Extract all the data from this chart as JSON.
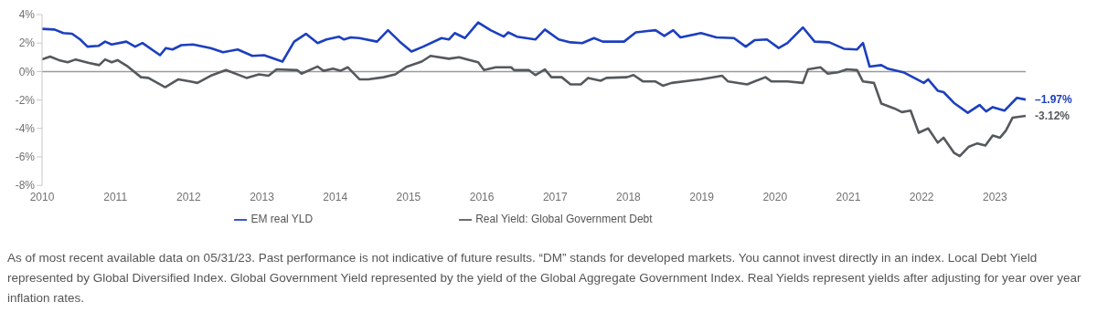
{
  "chart_data": {
    "type": "line",
    "xlim": [
      2010,
      2023.42
    ],
    "xticks": [
      2010,
      2011,
      2012,
      2013,
      2014,
      2015,
      2016,
      2017,
      2018,
      2019,
      2020,
      2021,
      2022,
      2023
    ],
    "ylim": [
      -8,
      4
    ],
    "yticks": [
      {
        "value": -8,
        "label": "-8%"
      },
      {
        "value": -6,
        "label": "-6%"
      },
      {
        "value": -4,
        "label": "-4%"
      },
      {
        "value": -2,
        "label": "-2%"
      },
      {
        "value": 0,
        "label": "0%"
      },
      {
        "value": 2,
        "label": "2%"
      },
      {
        "value": 4,
        "label": "4%"
      }
    ],
    "grid": false,
    "legend": "bottom",
    "marker": "none",
    "line_style": "solid",
    "ref_lines": [
      {
        "axis": "y",
        "value": 0,
        "color": "#9a9a9a"
      }
    ],
    "series": [
      {
        "name": "EM real YLD",
        "color": "#1c3fbf",
        "x": [
          2010.0,
          2010.17,
          2010.29,
          2010.41,
          2010.52,
          2010.62,
          2010.77,
          2010.86,
          2010.95,
          2011.15,
          2011.27,
          2011.37,
          2011.61,
          2011.69,
          2011.78,
          2011.9,
          2012.06,
          2012.3,
          2012.47,
          2012.67,
          2012.87,
          2013.03,
          2013.28,
          2013.44,
          2013.6,
          2013.76,
          2013.88,
          2014.05,
          2014.12,
          2014.21,
          2014.33,
          2014.57,
          2014.72,
          2014.88,
          2015.04,
          2015.2,
          2015.45,
          2015.55,
          2015.63,
          2015.77,
          2015.95,
          2016.12,
          2016.3,
          2016.36,
          2016.48,
          2016.73,
          2016.86,
          2017.05,
          2017.21,
          2017.37,
          2017.53,
          2017.65,
          2017.94,
          2018.1,
          2018.26,
          2018.37,
          2018.49,
          2018.61,
          2018.71,
          2018.99,
          2019.2,
          2019.44,
          2019.6,
          2019.72,
          2019.89,
          2020.05,
          2020.17,
          2020.38,
          2020.54,
          2020.74,
          2020.94,
          2021.12,
          2021.2,
          2021.29,
          2021.45,
          2021.54,
          2021.75,
          2021.9,
          2022.03,
          2022.09,
          2022.22,
          2022.3,
          2022.44,
          2022.63,
          2022.79,
          2022.88,
          2022.97,
          2023.13,
          2023.3,
          2023.42
        ],
        "values": [
          3.0,
          2.95,
          2.7,
          2.65,
          2.25,
          1.75,
          1.8,
          2.1,
          1.9,
          2.1,
          1.75,
          2.0,
          1.15,
          1.65,
          1.55,
          1.85,
          1.9,
          1.65,
          1.35,
          1.55,
          1.1,
          1.15,
          0.7,
          2.1,
          2.65,
          2.0,
          2.25,
          2.45,
          2.25,
          2.4,
          2.35,
          2.1,
          2.9,
          2.1,
          1.4,
          1.75,
          2.35,
          2.25,
          2.7,
          2.35,
          3.45,
          2.9,
          2.45,
          2.75,
          2.45,
          2.25,
          2.95,
          2.25,
          2.05,
          2.0,
          2.35,
          2.1,
          2.1,
          2.75,
          2.85,
          2.9,
          2.5,
          2.9,
          2.4,
          2.7,
          2.4,
          2.35,
          1.75,
          2.2,
          2.25,
          1.65,
          2.0,
          3.1,
          2.1,
          2.05,
          1.6,
          1.55,
          2.0,
          0.35,
          0.45,
          0.2,
          -0.05,
          -0.45,
          -0.8,
          -0.55,
          -1.35,
          -1.45,
          -2.2,
          -2.9,
          -2.35,
          -2.8,
          -2.5,
          -2.75,
          -1.85,
          -1.97
        ]
      },
      {
        "name": "Real Yield: Global Government Debt",
        "color": "#55595d",
        "x": [
          2010.0,
          2010.11,
          2010.23,
          2010.35,
          2010.46,
          2010.64,
          2010.78,
          2010.86,
          2010.95,
          2011.03,
          2011.17,
          2011.35,
          2011.45,
          2011.68,
          2011.86,
          2012.02,
          2012.12,
          2012.3,
          2012.51,
          2012.79,
          2012.96,
          2013.09,
          2013.2,
          2013.48,
          2013.54,
          2013.76,
          2013.84,
          2013.97,
          2014.07,
          2014.17,
          2014.33,
          2014.45,
          2014.66,
          2014.82,
          2014.98,
          2015.18,
          2015.3,
          2015.55,
          2015.69,
          2015.95,
          2016.03,
          2016.19,
          2016.4,
          2016.44,
          2016.64,
          2016.73,
          2016.86,
          2016.95,
          2017.09,
          2017.21,
          2017.35,
          2017.45,
          2017.62,
          2017.7,
          2017.98,
          2018.07,
          2018.2,
          2018.37,
          2018.47,
          2018.59,
          2018.83,
          2018.99,
          2019.28,
          2019.36,
          2019.62,
          2019.72,
          2019.87,
          2019.95,
          2020.17,
          2020.38,
          2020.45,
          2020.62,
          2020.72,
          2020.86,
          2020.98,
          2021.12,
          2021.2,
          2021.35,
          2021.45,
          2021.63,
          2021.73,
          2021.85,
          2021.96,
          2022.09,
          2022.22,
          2022.3,
          2022.44,
          2022.52,
          2022.64,
          2022.76,
          2022.87,
          2022.97,
          2023.07,
          2023.15,
          2023.24,
          2023.42
        ],
        "values": [
          0.85,
          1.05,
          0.8,
          0.65,
          0.85,
          0.6,
          0.45,
          0.85,
          0.65,
          0.8,
          0.35,
          -0.4,
          -0.45,
          -1.1,
          -0.55,
          -0.7,
          -0.8,
          -0.3,
          0.1,
          -0.45,
          -0.2,
          -0.3,
          0.15,
          0.1,
          -0.15,
          0.35,
          0.05,
          0.2,
          0.05,
          0.3,
          -0.55,
          -0.55,
          -0.4,
          -0.2,
          0.35,
          0.7,
          1.1,
          0.9,
          1.0,
          0.65,
          0.1,
          0.3,
          0.3,
          0.1,
          0.1,
          -0.25,
          0.15,
          -0.4,
          -0.4,
          -0.9,
          -0.9,
          -0.45,
          -0.65,
          -0.45,
          -0.4,
          -0.25,
          -0.7,
          -0.7,
          -1.0,
          -0.8,
          -0.65,
          -0.55,
          -0.3,
          -0.7,
          -0.9,
          -0.7,
          -0.4,
          -0.7,
          -0.7,
          -0.8,
          0.15,
          0.3,
          -0.15,
          -0.05,
          0.15,
          0.1,
          -0.7,
          -0.8,
          -2.25,
          -2.6,
          -2.85,
          -2.75,
          -4.3,
          -4.0,
          -5.0,
          -4.65,
          -5.7,
          -5.95,
          -5.3,
          -5.05,
          -5.2,
          -4.5,
          -4.65,
          -4.15,
          -3.25,
          -3.12
        ]
      }
    ],
    "annotations": [
      {
        "text": "–1.97%",
        "x": 2023.42,
        "y": -1.97
      },
      {
        "text": "-3.12%",
        "x": 2023.42,
        "y": -3.12
      },
      "As of most recent available data on 05/31/23. Past performance is not indicative of future results. “DM” stands for developed markets. You cannot invest directly in an index. Local Debt Yield represented by Global Diversified Index. Global Government Yield represented by the yield of the Global Aggregate Government Index. Real Yields represent yields after adjusting for year over year inflation rates."
    ]
  }
}
